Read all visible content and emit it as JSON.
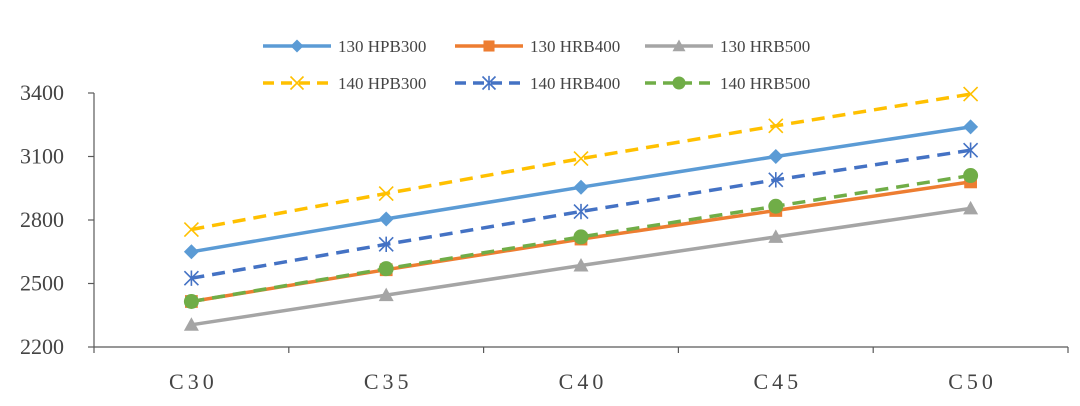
{
  "chart_data": {
    "type": "line",
    "title": "",
    "xlabel": "",
    "ylabel": "",
    "categories": [
      "C30",
      "C35",
      "C40",
      "C45",
      "C50"
    ],
    "ylim": [
      2200,
      3400
    ],
    "yticks": [
      2200,
      2500,
      2800,
      3100,
      3400
    ],
    "grid": false,
    "legend_position": "top",
    "series": [
      {
        "name": "130 HPB300",
        "values": [
          2650,
          2805,
          2955,
          3100,
          3240
        ],
        "color": "#5B9BD5",
        "marker": "diamond",
        "dash": "solid"
      },
      {
        "name": "130 HRB400",
        "values": [
          2415,
          2565,
          2710,
          2845,
          2980
        ],
        "color": "#ED7D31",
        "marker": "square",
        "dash": "solid"
      },
      {
        "name": "130 HRB500",
        "values": [
          2305,
          2445,
          2585,
          2720,
          2855
        ],
        "color": "#A5A5A5",
        "marker": "triangle",
        "dash": "solid"
      },
      {
        "name": "140 HPB300",
        "values": [
          2755,
          2925,
          3090,
          3245,
          3395
        ],
        "color": "#FFC000",
        "marker": "x",
        "dash": "dashed"
      },
      {
        "name": "140 HRB400",
        "values": [
          2525,
          2685,
          2840,
          2990,
          3130
        ],
        "color": "#4472C4",
        "marker": "star",
        "dash": "dashed"
      },
      {
        "name": "140 HRB500",
        "values": [
          2415,
          2570,
          2720,
          2865,
          3010
        ],
        "color": "#70AD47",
        "marker": "circle",
        "dash": "dashed"
      }
    ]
  }
}
